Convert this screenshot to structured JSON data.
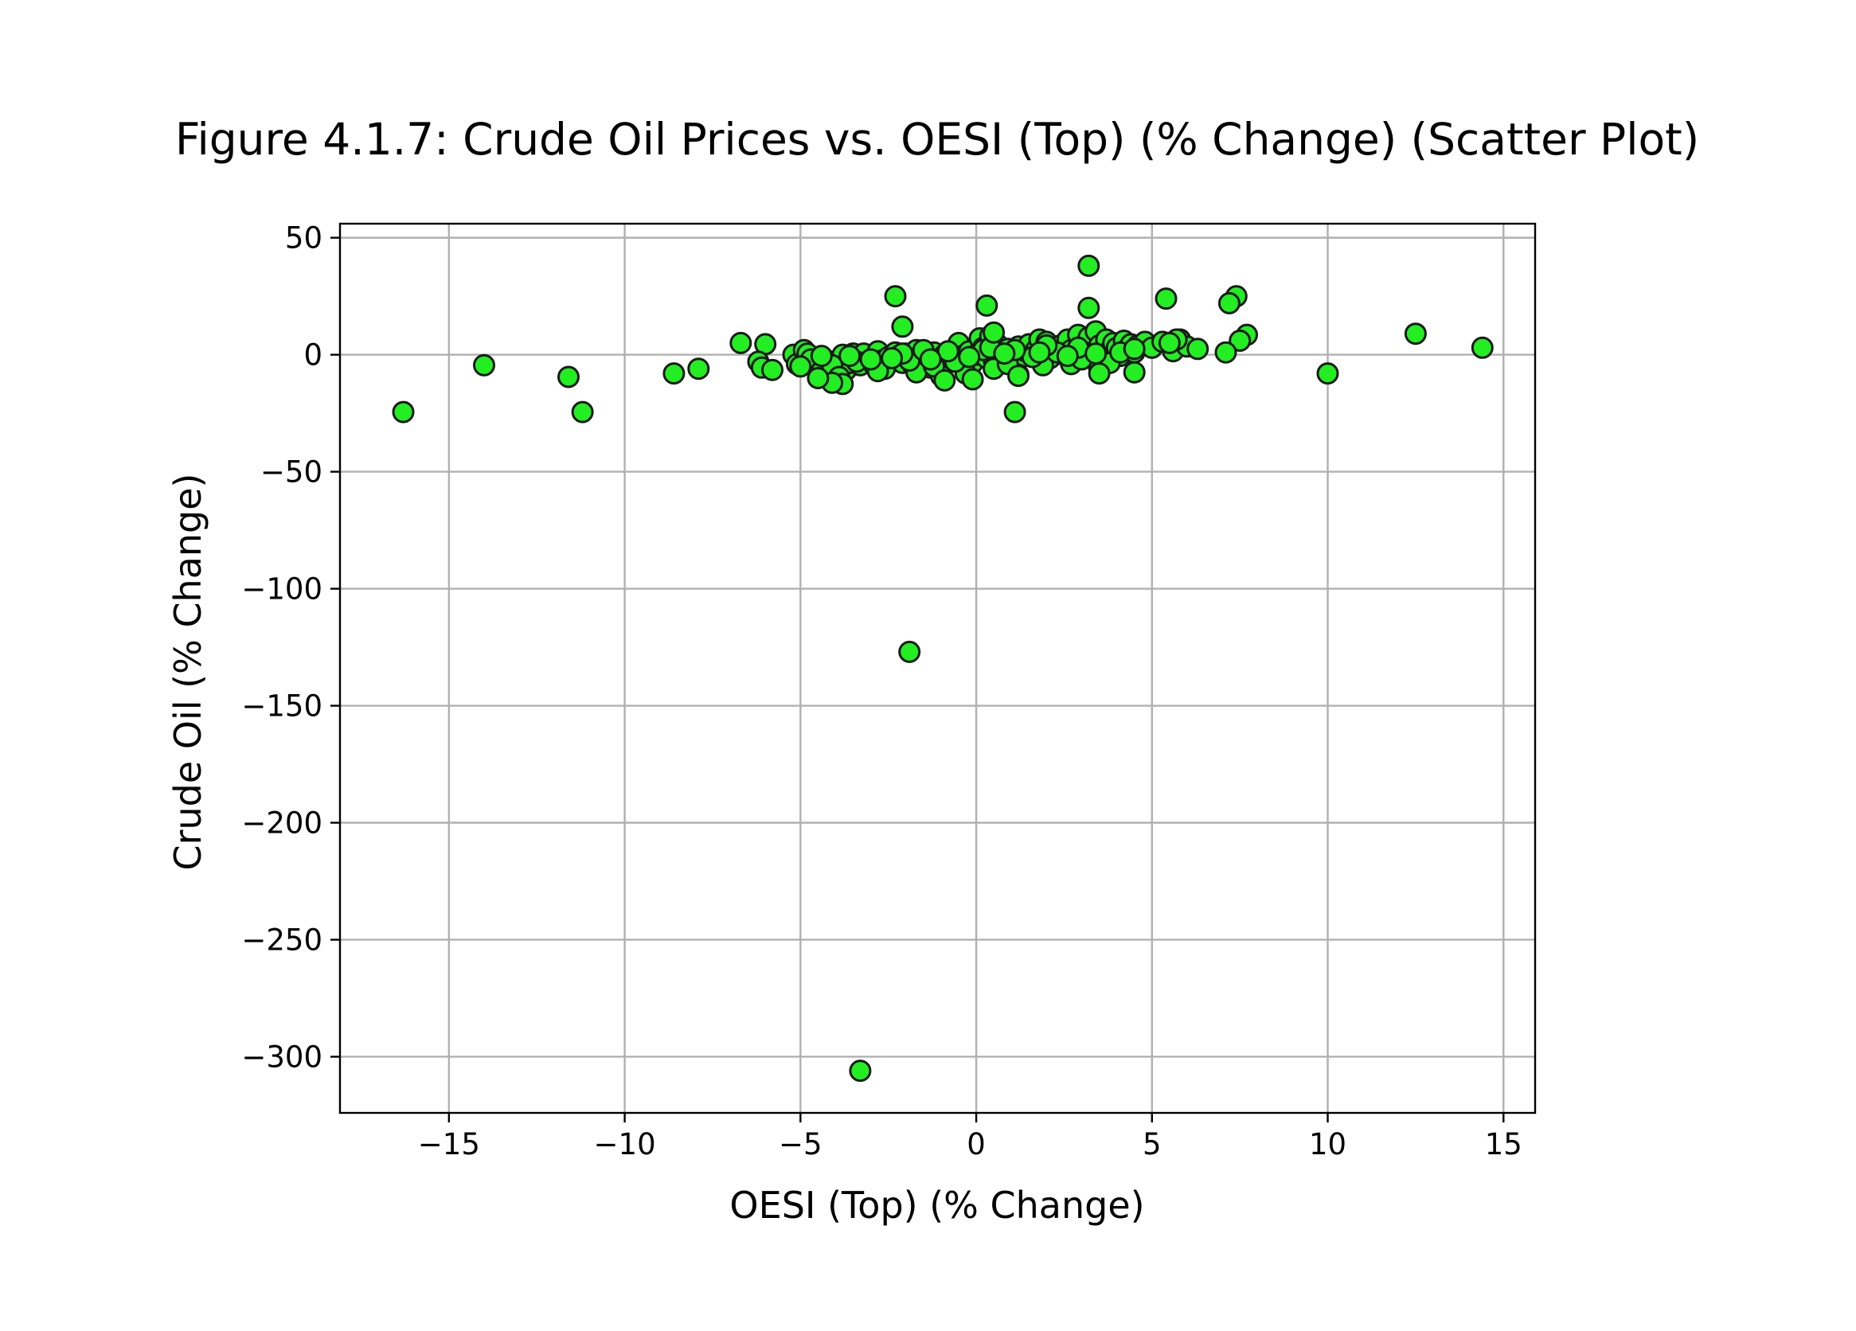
{
  "chart_data": {
    "type": "scatter",
    "title": "Figure 4.1.7: Crude Oil Prices vs. OESI (Top) (% Change) (Scatter Plot)",
    "xlabel": "OESI (Top) (% Change)",
    "ylabel": "Crude Oil (% Change)",
    "xlim": [
      -18.1,
      15.9
    ],
    "ylim": [
      -324,
      56
    ],
    "xticks": [
      -15,
      -10,
      -5,
      0,
      5,
      10,
      15
    ],
    "xtick_labels": [
      "−15",
      "−10",
      "−5",
      "0",
      "5",
      "10",
      "15"
    ],
    "yticks": [
      50,
      0,
      -50,
      -100,
      -150,
      -200,
      -250,
      -300
    ],
    "ytick_labels": [
      "50",
      "0",
      "−50",
      "−100",
      "−150",
      "−200",
      "−250",
      "−300"
    ],
    "grid": true,
    "marker_color": "#22ee22",
    "marker_edge_color": "#1a1a1a",
    "x": [
      -16.3,
      -14.0,
      -11.6,
      -11.2,
      -8.6,
      -7.9,
      -6.7,
      -6.0,
      -6.2,
      -6.1,
      -5.8,
      -5.2,
      -5.1,
      -4.9,
      -4.8,
      -4.6,
      -4.5,
      -4.3,
      -4.2,
      -4.0,
      -3.9,
      -3.8,
      -3.7,
      -3.6,
      -3.5,
      -3.3,
      -3.2,
      -3.0,
      -2.9,
      -2.8,
      -2.7,
      -2.6,
      -2.5,
      -2.4,
      -2.3,
      -2.2,
      -2.1,
      -2.0,
      -1.9,
      -1.8,
      -1.7,
      -1.6,
      -1.5,
      -1.4,
      -1.3,
      -1.2,
      -1.1,
      -1.0,
      -0.9,
      -0.8,
      -0.7,
      -0.6,
      -0.5,
      -0.4,
      -0.3,
      -0.2,
      -0.1,
      0.0,
      0.1,
      0.2,
      0.3,
      0.4,
      0.5,
      0.6,
      0.7,
      0.8,
      0.9,
      1.0,
      1.1,
      1.2,
      1.3,
      1.4,
      1.5,
      1.6,
      1.7,
      1.8,
      1.9,
      2.0,
      2.1,
      2.2,
      2.4,
      2.5,
      2.6,
      2.7,
      2.8,
      2.9,
      3.0,
      3.1,
      3.2,
      3.3,
      3.4,
      3.5,
      3.6,
      3.7,
      3.8,
      3.9,
      4.0,
      4.1,
      4.2,
      4.3,
      4.4,
      4.5,
      4.6,
      4.8,
      5.0,
      5.3,
      5.6,
      5.8,
      6.0,
      6.3,
      -4.7,
      -4.4,
      -4.1,
      -3.4,
      -2.6,
      -1.7,
      -1.0,
      -0.3,
      0.5,
      1.2,
      1.9,
      2.7,
      3.5,
      -5.0,
      -3.9,
      -2.8,
      -1.9,
      -1.2,
      -0.6,
      0.2,
      0.9,
      1.6,
      2.3,
      3.0,
      3.8,
      -4.4,
      -3.0,
      -2.1,
      -1.5,
      -0.8,
      0.4,
      1.1,
      2.0,
      2.9,
      4.1,
      -3.6,
      -2.4,
      -1.3,
      -0.2,
      0.8,
      1.8,
      2.6,
      3.4,
      4.5,
      -2.3,
      3.2,
      -2.1,
      0.3,
      5.4,
      7.4,
      7.2,
      3.2,
      7.7,
      7.5,
      7.1,
      5.7,
      5.5,
      0.5,
      3.5,
      4.5,
      -1.9,
      -3.3,
      1.1,
      1.2,
      -0.1,
      -0.9,
      -3.8,
      -4.1,
      -4.5,
      10.0,
      12.5,
      14.4
    ],
    "y": [
      -24.5,
      -4.5,
      -9.5,
      -24.5,
      -8.0,
      -6.0,
      5.0,
      4.5,
      -3.0,
      -5.5,
      -6.5,
      0.0,
      -4.0,
      2.0,
      0.5,
      -3.0,
      -6.0,
      -2.0,
      -9.0,
      -4.0,
      -11.0,
      0.0,
      -6.5,
      -3.5,
      0.5,
      -4.5,
      0.5,
      -2.5,
      -4.5,
      1.5,
      -2.5,
      -5.0,
      -1.0,
      -3.0,
      1.0,
      -0.5,
      -3.5,
      0.5,
      -2.5,
      -4.5,
      2.0,
      -1.5,
      -3.0,
      0.0,
      -5.5,
      1.0,
      -2.0,
      -4.0,
      0.0,
      -3.0,
      1.0,
      -1.5,
      5.0,
      -0.5,
      -2.0,
      1.5,
      -3.5,
      0.0,
      7.0,
      3.0,
      -1.5,
      8.0,
      -2.0,
      4.5,
      0.5,
      -3.0,
      2.5,
      0.0,
      -2.5,
      3.5,
      -1.0,
      1.5,
      4.5,
      -0.5,
      2.0,
      6.5,
      0.5,
      5.5,
      -1.5,
      3.0,
      4.0,
      0.0,
      6.5,
      2.0,
      -2.0,
      8.5,
      3.5,
      -1.0,
      7.5,
      1.0,
      10.0,
      4.0,
      -2.5,
      6.5,
      1.5,
      5.0,
      3.0,
      -0.5,
      6.0,
      2.5,
      4.5,
      1.0,
      4.0,
      5.5,
      3.0,
      5.5,
      1.5,
      6.5,
      3.5,
      2.5,
      -2.0,
      -7.0,
      -4.5,
      -3.0,
      -6.0,
      -7.5,
      -9.0,
      -8.0,
      -6.0,
      -8.5,
      -4.5,
      -4.0,
      -6.0,
      -5.0,
      -9.5,
      -7.0,
      -2.5,
      -5.0,
      -3.0,
      2.0,
      -4.0,
      -1.0,
      1.0,
      -2.0,
      -3.5,
      -0.5,
      -2.0,
      0.5,
      2.0,
      1.5,
      3.0,
      2.0,
      4.0,
      3.0,
      1.0,
      -0.5,
      -1.5,
      -2.0,
      -1.0,
      0.5,
      1.0,
      -0.5,
      0.5,
      2.5,
      25.0,
      20.0,
      12.0,
      21.0,
      24.0,
      25.0,
      22.0,
      38.0,
      8.5,
      6.0,
      1.0,
      6.5,
      5.0,
      9.5,
      -8.0,
      -7.5,
      -127.0,
      -306.0,
      -24.5,
      -9.0,
      -10.5,
      -11.0,
      -12.5,
      -12.0,
      -10.0,
      -8.0,
      9.0,
      3.0
    ]
  }
}
